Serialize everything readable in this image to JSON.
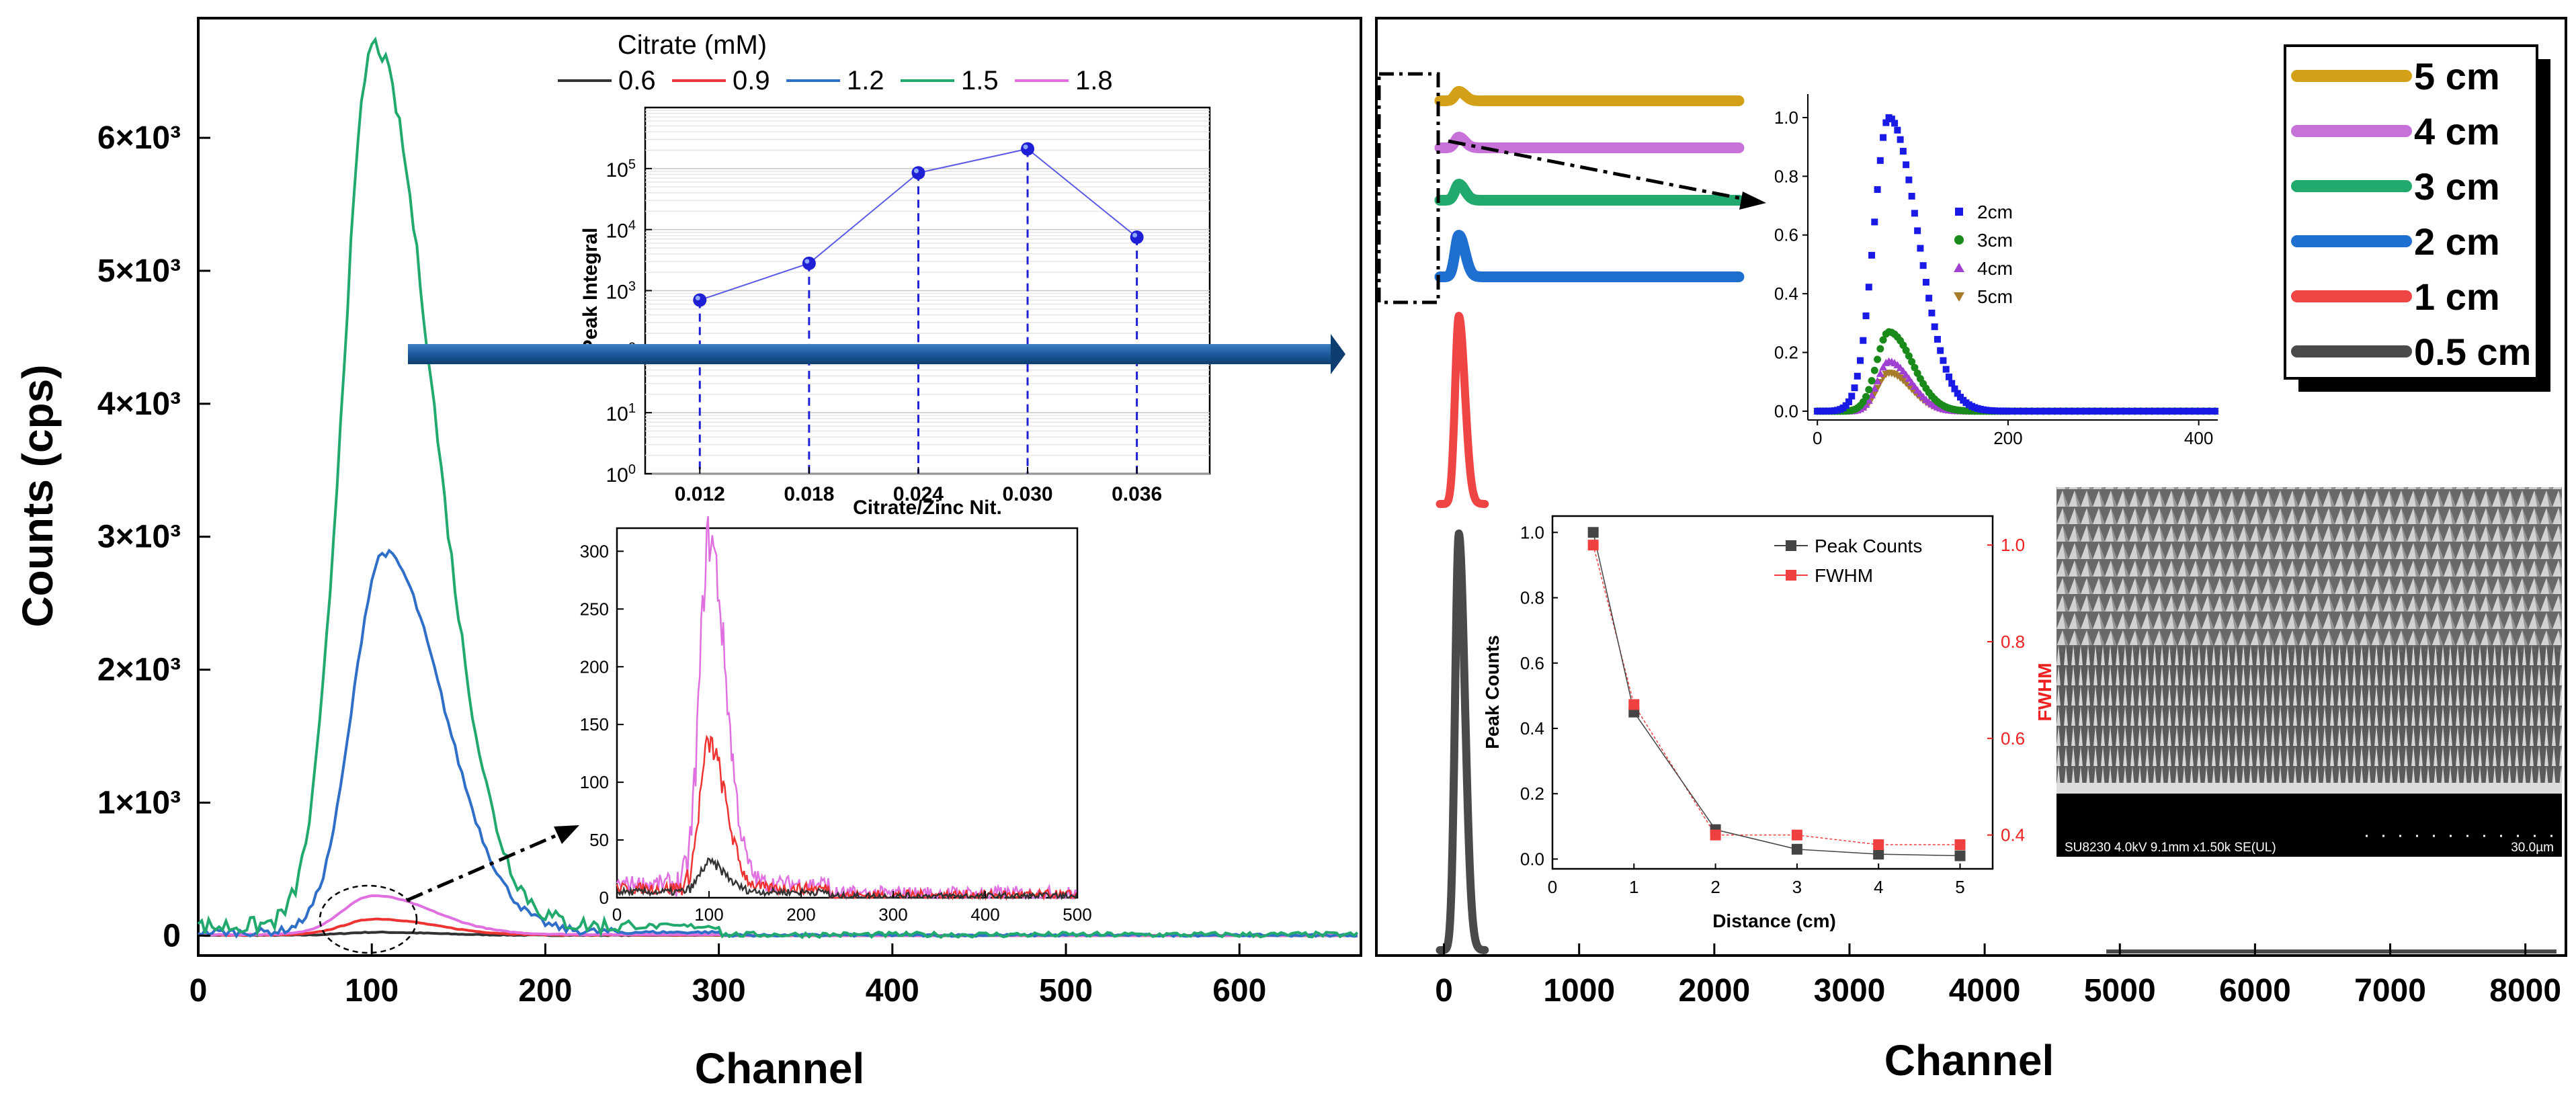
{
  "chart_data": [
    {
      "panel": "left-main",
      "type": "line",
      "xlabel": "Channel",
      "ylabel": "Counts (cps)",
      "xlim": [
        0,
        670
      ],
      "ylim": [
        -150,
        6900
      ],
      "x_ticks": [
        0,
        100,
        200,
        300,
        400,
        500,
        600
      ],
      "y_ticks": [
        {
          "value": 0,
          "label": "0"
        },
        {
          "value": 1000,
          "label": "1×10³"
        },
        {
          "value": 2000,
          "label": "2×10³"
        },
        {
          "value": 3000,
          "label": "3×10³"
        },
        {
          "value": 4000,
          "label": "4×10³"
        },
        {
          "value": 5000,
          "label": "5×10³"
        },
        {
          "value": 6000,
          "label": "6×10³"
        }
      ],
      "legend_title": "Citrate (mM)",
      "series": [
        {
          "name": "0.6",
          "color": "#333333",
          "peak_x": 102,
          "peak_y": 25,
          "baseline": 2
        },
        {
          "name": "0.9",
          "color": "#ee3333",
          "peak_x": 102,
          "peak_y": 125,
          "baseline": 4
        },
        {
          "name": "1.2",
          "color": "#2f6fc8",
          "peak_x": 107,
          "peak_y": 2880,
          "baseline": 25
        },
        {
          "name": "1.5",
          "color": "#22aa6e",
          "peak_x": 101,
          "peak_y": 6700,
          "baseline": 70
        },
        {
          "name": "1.8",
          "color": "#e070e0",
          "peak_x": 101,
          "peak_y": 300,
          "baseline": 8
        }
      ]
    },
    {
      "panel": "left-inset-peak-integral",
      "type": "scatter",
      "xlabel": "Citrate/Zinc Nit.",
      "ylabel": "Peak Integral",
      "y_scale": "log",
      "ylim": [
        1,
        1000000
      ],
      "xlim": [
        0.009,
        0.04
      ],
      "x": [
        0.012,
        0.018,
        0.024,
        0.03,
        0.036
      ],
      "y": [
        700,
        2800,
        85000,
        210000,
        7500
      ],
      "x_tick_labels": [
        "0.012",
        "0.018",
        "0.024",
        "0.030",
        "0.036"
      ],
      "y_tick_labels": [
        {
          "value": 1,
          "base": "10",
          "exp": "0"
        },
        {
          "value": 10,
          "base": "10",
          "exp": "1"
        },
        {
          "value": 100,
          "base": "10",
          "exp": "2"
        },
        {
          "value": 1000,
          "base": "10",
          "exp": "3"
        },
        {
          "value": 10000,
          "base": "10",
          "exp": "4"
        },
        {
          "value": 100000,
          "base": "10",
          "exp": "5"
        }
      ],
      "color": "#1f1fd6"
    },
    {
      "panel": "left-inset-zoom",
      "type": "line",
      "xlim": [
        0,
        500
      ],
      "ylim": [
        0,
        320
      ],
      "x_ticks": [
        0,
        100,
        200,
        300,
        400,
        500
      ],
      "y_ticks": [
        0,
        50,
        100,
        150,
        200,
        250,
        300
      ],
      "series_peaks": [
        {
          "color": "#333333",
          "peak_y": 25,
          "baseline": 5
        },
        {
          "color": "#ee3333",
          "peak_y": 125,
          "baseline": 8
        },
        {
          "color": "#e070e0",
          "peak_y": 300,
          "baseline": 12
        }
      ]
    },
    {
      "panel": "right-main",
      "type": "line",
      "xlabel": "Channel",
      "xlim": [
        -500,
        8300
      ],
      "x_ticks": [
        0,
        1000,
        2000,
        3000,
        4000,
        5000,
        6000,
        7000,
        8000
      ],
      "legend": [
        {
          "name": "5 cm",
          "color": "#d4a017"
        },
        {
          "name": "4 cm",
          "color": "#c772d9"
        },
        {
          "name": "3 cm",
          "color": "#22aa6e"
        },
        {
          "name": "2 cm",
          "color": "#1e6fd0"
        },
        {
          "name": "1 cm",
          "color": "#f04545"
        },
        {
          "name": "0.5 cm",
          "color": "#4a4a4a"
        }
      ]
    },
    {
      "panel": "right-inset-normalized",
      "type": "scatter",
      "xlim": [
        -10,
        420
      ],
      "ylim": [
        -0.03,
        1.08
      ],
      "x_ticks": [
        0,
        200,
        400
      ],
      "y_ticks": [
        0.0,
        0.2,
        0.4,
        0.6,
        0.8,
        1.0
      ],
      "y_tick_labels": [
        "0.0",
        "0.2",
        "0.4",
        "0.6",
        "0.8",
        "1.0"
      ],
      "series": [
        {
          "name": "2cm",
          "color": "#1a1ae6",
          "marker": "square",
          "peak": 1.0
        },
        {
          "name": "3cm",
          "color": "#1a8a1a",
          "marker": "circle",
          "peak": 0.27
        },
        {
          "name": "4cm",
          "color": "#a040d0",
          "marker": "triangle-up",
          "peak": 0.17
        },
        {
          "name": "5cm",
          "color": "#a67c2a",
          "marker": "triangle-down",
          "peak": 0.13
        }
      ]
    },
    {
      "panel": "right-inset-peak-fwhm",
      "type": "scatter",
      "xlabel": "Distance (cm)",
      "ylabel": "Peak Counts",
      "y2label": "FWHM",
      "xlim": [
        0,
        5.4
      ],
      "ylim": [
        -0.03,
        1.05
      ],
      "y2lim": [
        0.33,
        1.06
      ],
      "x_ticks": [
        0,
        1,
        2,
        3,
        4,
        5
      ],
      "y_ticks": [
        "0.0",
        "0.2",
        "0.4",
        "0.6",
        "0.8",
        "1.0"
      ],
      "y2_ticks": [
        "0.4",
        "0.6",
        "0.8",
        "1.0"
      ],
      "series": [
        {
          "name": "Peak Counts",
          "color": "#444444",
          "x": [
            0.5,
            1,
            2,
            3,
            4,
            5
          ],
          "y": [
            1.0,
            0.45,
            0.09,
            0.03,
            0.015,
            0.01
          ]
        },
        {
          "name": "FWHM",
          "color": "#f04040",
          "x": [
            0.5,
            1,
            2,
            3,
            4,
            5
          ],
          "y": [
            1.0,
            0.67,
            0.4,
            0.4,
            0.38,
            0.38
          ]
        }
      ]
    }
  ],
  "sem_caption": "SU8230 4.0kV 9.1mm x1.50k SE(UL)",
  "sem_scale": "30.0µm"
}
